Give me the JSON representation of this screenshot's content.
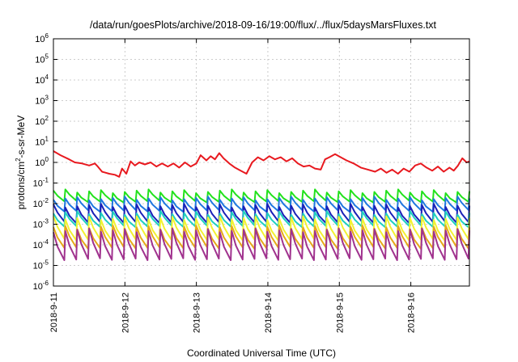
{
  "chart_data": {
    "type": "line",
    "title": "/data/run/goesPlots/archive/2018-09-16/19:00/flux/../flux/5daysMarsFluxes.txt",
    "xlabel": "Coordinated Universal Time (UTC)",
    "ylabel": {
      "base": "protons/cm",
      "sup": "2",
      "rest": "-s-sr-MeV"
    },
    "x_ticks": [
      "2018-9-11",
      "2018-9-12",
      "2018-9-13",
      "2018-9-14",
      "2018-9-15",
      "2018-9-16"
    ],
    "x_range_days": [
      0,
      5.82
    ],
    "y_scale": "log",
    "y_range_exp": [
      -6,
      6
    ],
    "y_ticks": [
      {
        "base": "10",
        "exp": "-6"
      },
      {
        "base": "10",
        "exp": "-5"
      },
      {
        "base": "10",
        "exp": "-4"
      },
      {
        "base": "10",
        "exp": "-3"
      },
      {
        "base": "10",
        "exp": "-2"
      },
      {
        "base": "10",
        "exp": "-1"
      },
      {
        "base": "10",
        "exp": "0"
      },
      {
        "base": "10",
        "exp": "1"
      },
      {
        "base": "10",
        "exp": "2"
      },
      {
        "base": "10",
        "exp": "3"
      },
      {
        "base": "10",
        "exp": "4"
      },
      {
        "base": "10",
        "exp": "5"
      },
      {
        "base": "10",
        "exp": "6"
      }
    ],
    "grid": true,
    "series": [
      {
        "color": "#e8191f",
        "log10_values": [
          [
            0.0,
            0.55
          ],
          [
            0.1,
            0.35
          ],
          [
            0.22,
            0.15
          ],
          [
            0.3,
            0.0
          ],
          [
            0.4,
            -0.05
          ],
          [
            0.5,
            -0.15
          ],
          [
            0.58,
            -0.05
          ],
          [
            0.62,
            -0.2
          ],
          [
            0.68,
            -0.45
          ],
          [
            0.78,
            -0.55
          ],
          [
            0.86,
            -0.6
          ],
          [
            0.92,
            -0.7
          ],
          [
            0.96,
            -0.3
          ],
          [
            1.02,
            -0.55
          ],
          [
            1.08,
            0.05
          ],
          [
            1.14,
            -0.15
          ],
          [
            1.2,
            0.0
          ],
          [
            1.28,
            -0.1
          ],
          [
            1.36,
            0.0
          ],
          [
            1.44,
            -0.2
          ],
          [
            1.52,
            -0.05
          ],
          [
            1.6,
            -0.2
          ],
          [
            1.68,
            -0.05
          ],
          [
            1.76,
            -0.25
          ],
          [
            1.84,
            0.0
          ],
          [
            1.92,
            -0.2
          ],
          [
            2.0,
            -0.05
          ],
          [
            2.06,
            0.35
          ],
          [
            2.14,
            0.1
          ],
          [
            2.2,
            0.3
          ],
          [
            2.26,
            0.15
          ],
          [
            2.32,
            0.45
          ],
          [
            2.38,
            0.2
          ],
          [
            2.46,
            -0.05
          ],
          [
            2.54,
            -0.25
          ],
          [
            2.62,
            -0.4
          ],
          [
            2.7,
            -0.55
          ],
          [
            2.78,
            0.0
          ],
          [
            2.86,
            0.25
          ],
          [
            2.94,
            0.1
          ],
          [
            3.02,
            0.3
          ],
          [
            3.1,
            0.15
          ],
          [
            3.18,
            0.25
          ],
          [
            3.26,
            0.05
          ],
          [
            3.34,
            0.2
          ],
          [
            3.42,
            -0.05
          ],
          [
            3.5,
            -0.2
          ],
          [
            3.58,
            -0.15
          ],
          [
            3.66,
            -0.3
          ],
          [
            3.74,
            -0.35
          ],
          [
            3.8,
            0.15
          ],
          [
            3.86,
            0.25
          ],
          [
            3.94,
            0.4
          ],
          [
            4.02,
            0.25
          ],
          [
            4.1,
            0.1
          ],
          [
            4.2,
            -0.05
          ],
          [
            4.3,
            -0.25
          ],
          [
            4.4,
            -0.35
          ],
          [
            4.5,
            -0.45
          ],
          [
            4.58,
            -0.3
          ],
          [
            4.66,
            -0.5
          ],
          [
            4.74,
            -0.35
          ],
          [
            4.82,
            -0.55
          ],
          [
            4.9,
            -0.3
          ],
          [
            4.98,
            -0.45
          ],
          [
            5.06,
            -0.15
          ],
          [
            5.14,
            -0.05
          ],
          [
            5.22,
            -0.25
          ],
          [
            5.3,
            -0.4
          ],
          [
            5.38,
            -0.2
          ],
          [
            5.46,
            -0.45
          ],
          [
            5.54,
            -0.25
          ],
          [
            5.6,
            -0.4
          ],
          [
            5.66,
            -0.15
          ],
          [
            5.72,
            0.2
          ],
          [
            5.78,
            0.0
          ],
          [
            5.82,
            0.05
          ]
        ]
      },
      {
        "color": "#22e21c",
        "sawtooth_log10": {
          "high": -1.4,
          "low": -1.9
        }
      },
      {
        "color": "#1f78e0",
        "sawtooth_log10": {
          "high": -1.75,
          "low": -2.35
        }
      },
      {
        "color": "#1b20b8",
        "sawtooth_log10": {
          "high": -2.1,
          "low": -2.9
        }
      },
      {
        "color": "#1fd0c0",
        "sawtooth_log10": {
          "high": -2.45,
          "low": -3.1
        }
      },
      {
        "color": "#f2f231",
        "sawtooth_log10": {
          "high": -2.7,
          "low": -3.75
        }
      },
      {
        "color": "#e6a919",
        "sawtooth_log10": {
          "high": -3.15,
          "low": -4.15
        }
      },
      {
        "color": "#a0328e",
        "sawtooth_log10": {
          "high": -3.3,
          "low": -4.7
        }
      }
    ],
    "sawtooth_cycles": 35
  }
}
